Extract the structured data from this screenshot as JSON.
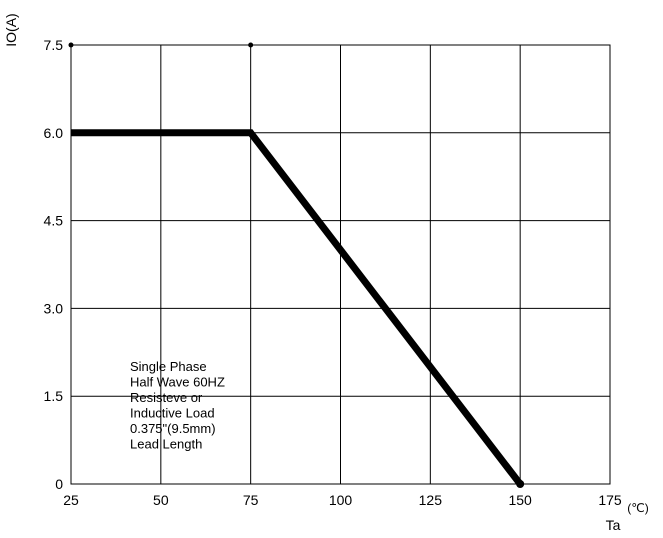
{
  "chart_data": {
    "type": "line",
    "title": "",
    "xlabel": "Ta",
    "xunit": "(℃)",
    "ylabel": "IO(A)",
    "xlim": [
      25,
      175
    ],
    "ylim": [
      0,
      7.5
    ],
    "x_ticks": [
      "25",
      "50",
      "75",
      "100",
      "125",
      "150",
      "175"
    ],
    "y_ticks": [
      "0",
      "1.5",
      "3.0",
      "4.5",
      "6.0",
      "7.5"
    ],
    "x_tick_values": [
      25,
      50,
      75,
      100,
      125,
      150,
      175
    ],
    "y_tick_values": [
      0,
      1.5,
      3.0,
      4.5,
      6.0,
      7.5
    ],
    "grid": true,
    "series": [
      {
        "x": [
          25,
          75,
          150
        ],
        "y": [
          6.0,
          6.0,
          0
        ]
      }
    ],
    "annotation": [
      "Single Phase",
      "Half Wave 60HZ",
      "Resisteve or",
      "Inductive Load",
      "0.375\"(9.5mm)",
      "Lead Length"
    ]
  }
}
